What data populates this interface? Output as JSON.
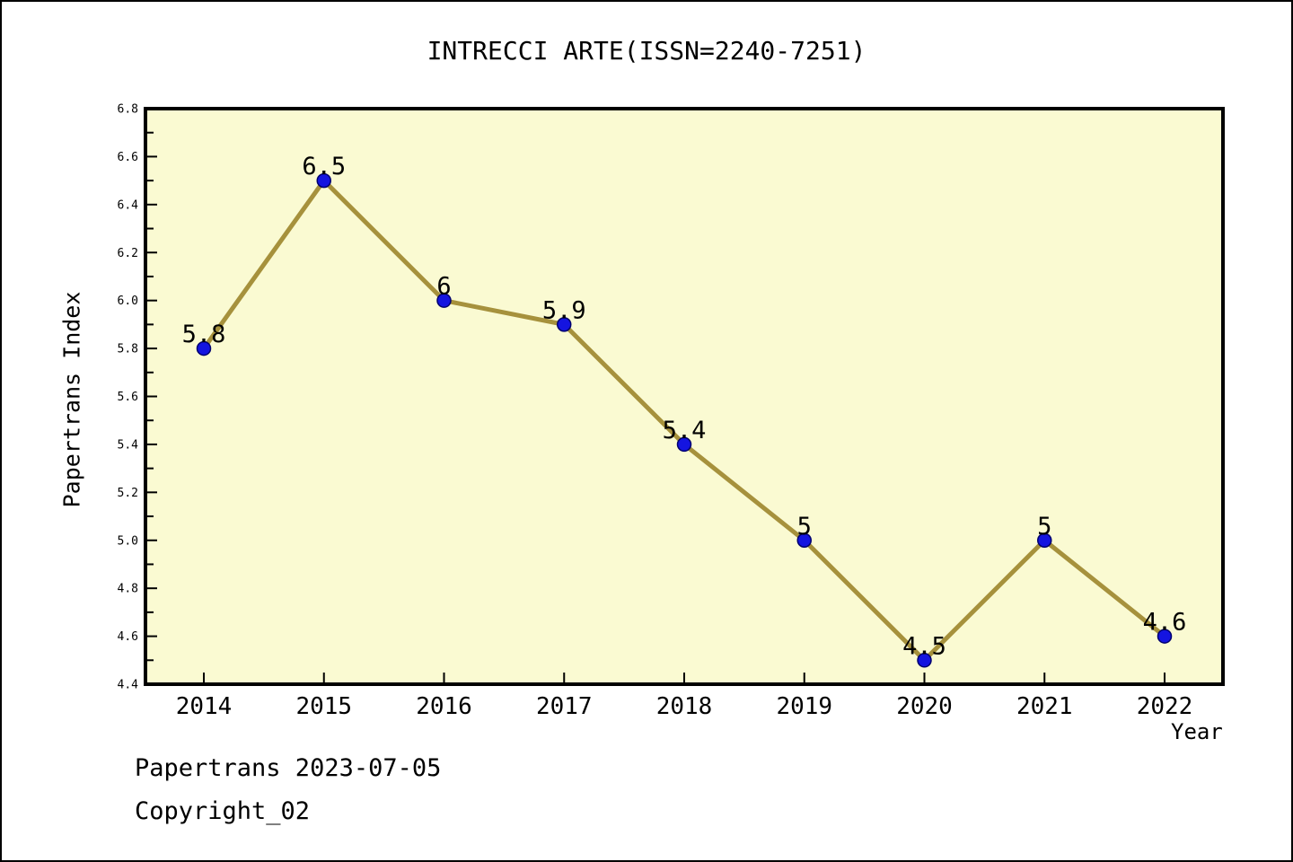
{
  "title": "INTRECCI ARTE(ISSN=2240-7251)",
  "footer": {
    "line1": "Papertrans 2023-07-05",
    "line2": "Copyright_02"
  },
  "chart_data": {
    "type": "line",
    "title": "INTRECCI ARTE(ISSN=2240-7251)",
    "xlabel": "Year",
    "ylabel": "Papertrans Index",
    "x": [
      2014,
      2015,
      2016,
      2017,
      2018,
      2019,
      2020,
      2021,
      2022
    ],
    "series": [
      {
        "name": "Papertrans Index",
        "values": [
          5.8,
          6.5,
          6.0,
          5.9,
          5.4,
          5.0,
          4.5,
          5.0,
          4.6
        ]
      }
    ],
    "point_labels": [
      "5.8",
      "6.5",
      "6",
      "5.9",
      "5.4",
      "5",
      "4.5",
      "5",
      "4.6"
    ],
    "ylim": [
      4.4,
      6.8
    ],
    "y_major_step": 0.2,
    "y_minor_step": 0.1,
    "grid": false,
    "legend": "none",
    "colors": {
      "line": "#A6913C",
      "marker_fill": "#1414E0",
      "marker_edge": "#00006E",
      "plot_bg": "#FAFAD2",
      "axis": "#000000",
      "text": "#000000"
    }
  }
}
